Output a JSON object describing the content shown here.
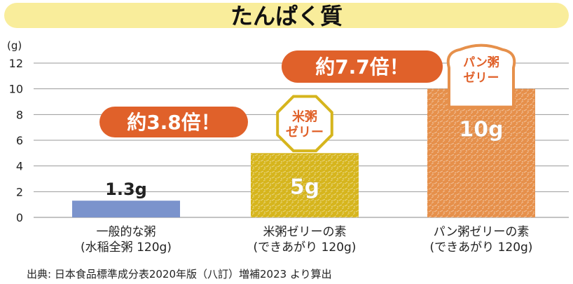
{
  "title": "たんぱく質",
  "chart_data": {
    "type": "bar",
    "unit_label": "(g)",
    "ylim": [
      0,
      12
    ],
    "yticks": [
      0,
      2,
      4,
      6,
      8,
      10,
      12
    ],
    "grid": true,
    "categories": [
      [
        "一般的な粥",
        "(水稲全粥 120g)"
      ],
      [
        "米粥ゼリーの素",
        "(できあがり 120g)"
      ],
      [
        "パン粥ゼリーの素",
        "(できあがり 120g)"
      ]
    ],
    "values": [
      1.3,
      5,
      10
    ],
    "value_labels": [
      "1.3g",
      "5g",
      "10g"
    ],
    "colors": [
      "#7b93cc",
      "#d6b51d",
      "#e6904b"
    ],
    "badges": [
      {
        "text": "米粥\nゼリー",
        "bar": 1,
        "color": "#d6b51d"
      },
      {
        "text": "パン粥\nゼリー",
        "bar": 2,
        "color": "#e6904b"
      }
    ],
    "callouts": [
      {
        "text": "約3.8倍！",
        "bar": 1,
        "color": "#e0612a"
      },
      {
        "text": "約7.7倍！",
        "bar": 2,
        "color": "#e0612a"
      }
    ]
  },
  "source": "出典: 日本食品標準成分表2020年版（八訂）増補2023 より算出"
}
